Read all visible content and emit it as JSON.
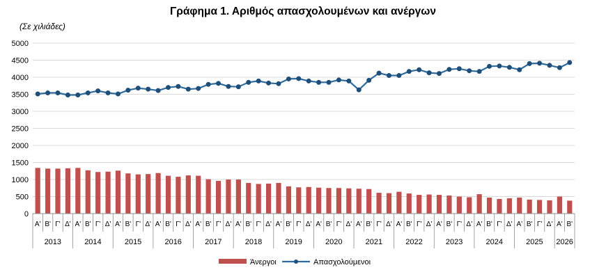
{
  "chart_data": {
    "type": "bar+line",
    "title": "Γράφημα 1. Αριθμός απασχολουμένων και ανέργων",
    "unit_label": "(Σε χιλιάδες)",
    "ylim": [
      0,
      5000
    ],
    "yticks": [
      0,
      500,
      1000,
      1500,
      2000,
      2500,
      3000,
      3500,
      4000,
      4500,
      5000
    ],
    "grid": true,
    "legend_position": "bottom",
    "quarters": [
      "Α'",
      "Β'",
      "Γ'",
      "Δ'",
      "Α'",
      "Β'",
      "Γ'",
      "Δ'",
      "Α'",
      "Β'",
      "Γ'",
      "Δ'",
      "Α'",
      "Β'",
      "Γ'",
      "Δ'",
      "Α'",
      "Β'",
      "Γ'",
      "Δ'",
      "Α'",
      "Β'",
      "Γ'",
      "Δ'",
      "Α'",
      "Β'",
      "Γ'",
      "Δ'",
      "Α'",
      "Β'",
      "Γ'",
      "Δ'",
      "Α'",
      "Β'",
      "Γ'",
      "Δ'",
      "Α'",
      "Β'",
      "Γ'",
      "Δ'",
      "Α'",
      "Β'",
      "Γ'",
      "Δ'",
      "Α'",
      "Β'",
      "Γ'",
      "Δ'",
      "Α'",
      "Β'",
      "Γ'",
      "Δ'",
      "Α'",
      "Β'"
    ],
    "years": [
      {
        "label": "2013",
        "count": 4
      },
      {
        "label": "2014",
        "count": 4
      },
      {
        "label": "2015",
        "count": 4
      },
      {
        "label": "2016",
        "count": 4
      },
      {
        "label": "2017",
        "count": 4
      },
      {
        "label": "2018",
        "count": 4
      },
      {
        "label": "2019",
        "count": 4
      },
      {
        "label": "2020",
        "count": 4
      },
      {
        "label": "2021",
        "count": 4
      },
      {
        "label": "2022",
        "count": 4
      },
      {
        "label": "2023",
        "count": 4
      },
      {
        "label": "2024",
        "count": 4
      },
      {
        "label": "2025",
        "count": 4
      },
      {
        "label": "2026",
        "count": 2
      }
    ],
    "series": [
      {
        "name": "Άνεργοι",
        "kind": "bar",
        "color": "#c0504d",
        "values": [
          1340,
          1320,
          1320,
          1330,
          1340,
          1270,
          1220,
          1230,
          1260,
          1180,
          1150,
          1160,
          1190,
          1110,
          1080,
          1120,
          1110,
          1010,
          960,
          1000,
          1000,
          900,
          870,
          880,
          900,
          800,
          770,
          780,
          760,
          750,
          750,
          740,
          730,
          720,
          610,
          600,
          640,
          590,
          550,
          560,
          550,
          530,
          500,
          480,
          570,
          470,
          430,
          450,
          470,
          410,
          400,
          390,
          500,
          380
        ]
      },
      {
        "name": "Απασχολούμενοι",
        "kind": "line",
        "color": "#2e6b9e",
        "values": [
          3510,
          3540,
          3540,
          3480,
          3480,
          3540,
          3600,
          3540,
          3510,
          3620,
          3680,
          3650,
          3610,
          3700,
          3730,
          3650,
          3670,
          3790,
          3820,
          3730,
          3720,
          3850,
          3890,
          3830,
          3810,
          3950,
          3960,
          3890,
          3850,
          3850,
          3920,
          3890,
          3630,
          3910,
          4120,
          4050,
          4050,
          4170,
          4220,
          4130,
          4110,
          4230,
          4250,
          4190,
          4170,
          4320,
          4330,
          4290,
          4220,
          4400,
          4410,
          4350,
          4280,
          4430
        ]
      }
    ]
  }
}
